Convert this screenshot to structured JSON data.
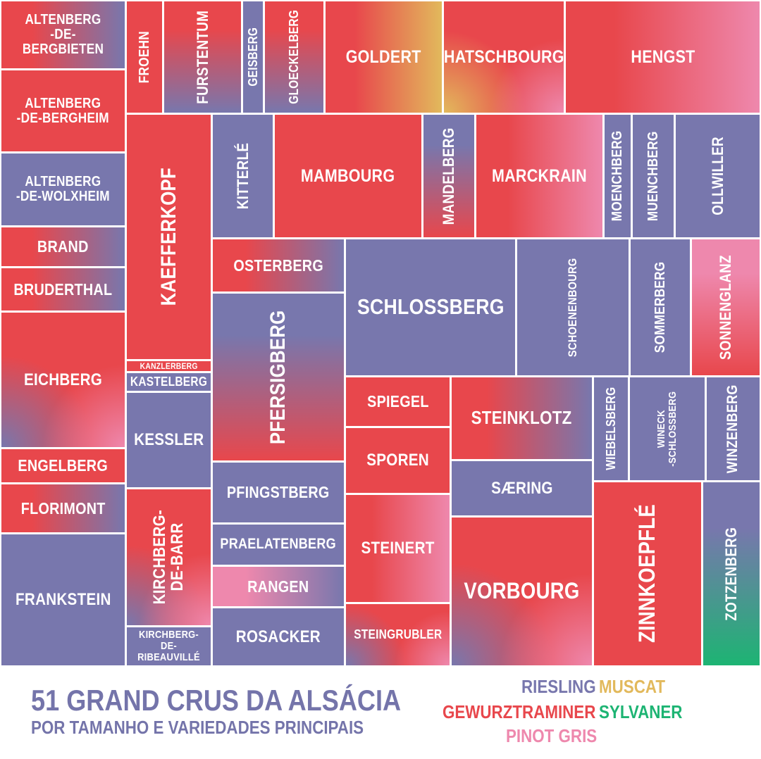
{
  "colors": {
    "Riesling": "#7877ad",
    "Muscat": "#e2b95c",
    "Gewurztraminer": "#e8474c",
    "Sylvaner": "#1db473",
    "Pinot Gris": "#ee88ad"
  },
  "title": {
    "line1": "51 GRAND CRUS DA ALSÁCIA",
    "line2": "POR TAMANHO E VARIEDADES PRINCIPAIS"
  },
  "legend": [
    "RIESLING",
    "MUSCAT",
    "GEWURZTRAMINER",
    "SYLVANER",
    "PINOT GRIS"
  ],
  "chart_data": {
    "type": "treemap",
    "title": "51 GRAND CRUS DA ALSÁCIA",
    "subtitle": "POR TAMANHO E VARIEDADES PRINCIPAIS",
    "legend": [
      "Riesling",
      "Muscat",
      "Gewurztraminer",
      "Sylvaner",
      "Pinot Gris"
    ],
    "cells": [
      {
        "name": "ALTENBERG\n-DE-BERGBIETEN",
        "varieties": [
          "Gewurztraminer",
          "Riesling"
        ]
      },
      {
        "name": "ALTENBERG\n-DE-BERGHEIM",
        "varieties": [
          "Gewurztraminer"
        ]
      },
      {
        "name": "ALTENBERG\n-DE-WOLXHEIM",
        "varieties": [
          "Riesling"
        ]
      },
      {
        "name": "BRAND",
        "varieties": [
          "Gewurztraminer",
          "Riesling"
        ]
      },
      {
        "name": "BRUDERTHAL",
        "varieties": [
          "Gewurztraminer",
          "Riesling"
        ]
      },
      {
        "name": "EICHBERG",
        "varieties": [
          "Gewurztraminer",
          "Riesling",
          "Pinot Gris"
        ]
      },
      {
        "name": "ENGELBERG",
        "varieties": [
          "Gewurztraminer"
        ]
      },
      {
        "name": "FLORIMONT",
        "varieties": [
          "Gewurztraminer",
          "Riesling"
        ]
      },
      {
        "name": "FRANKSTEIN",
        "varieties": [
          "Riesling"
        ]
      },
      {
        "name": "FROEHN",
        "varieties": [
          "Gewurztraminer"
        ]
      },
      {
        "name": "FURSTENTUM",
        "varieties": [
          "Gewurztraminer",
          "Riesling"
        ]
      },
      {
        "name": "GEISBERG",
        "varieties": [
          "Riesling"
        ]
      },
      {
        "name": "GLOECKELBERG",
        "varieties": [
          "Gewurztraminer",
          "Riesling"
        ]
      },
      {
        "name": "GOLDERT",
        "varieties": [
          "Gewurztraminer",
          "Muscat"
        ]
      },
      {
        "name": "HATSCHBOURG",
        "varieties": [
          "Gewurztraminer",
          "Muscat",
          "Pinot Gris"
        ]
      },
      {
        "name": "HENGST",
        "varieties": [
          "Gewurztraminer",
          "Pinot Gris"
        ]
      },
      {
        "name": "KAEFFERKOPF",
        "varieties": [
          "Gewurztraminer"
        ]
      },
      {
        "name": "KANZLERBERG",
        "varieties": [
          "Gewurztraminer"
        ]
      },
      {
        "name": "KASTELBERG",
        "varieties": [
          "Riesling"
        ]
      },
      {
        "name": "KESSLER",
        "varieties": [
          "Riesling"
        ]
      },
      {
        "name": "KIRCHBERG-\nDE-BARR",
        "varieties": [
          "Gewurztraminer",
          "Riesling",
          "Pinot Gris"
        ]
      },
      {
        "name": "KIRCHBERG-\nDE-RIBEAUVILLÉ",
        "varieties": [
          "Riesling"
        ]
      },
      {
        "name": "KITTERLÉ",
        "varieties": [
          "Riesling"
        ]
      },
      {
        "name": "MAMBOURG",
        "varieties": [
          "Gewurztraminer"
        ]
      },
      {
        "name": "MANDELBERG",
        "varieties": [
          "Riesling",
          "Gewurztraminer"
        ]
      },
      {
        "name": "MARCKRAIN",
        "varieties": [
          "Gewurztraminer",
          "Pinot Gris"
        ]
      },
      {
        "name": "MOENCHBERG",
        "varieties": [
          "Riesling"
        ]
      },
      {
        "name": "MUENCHBERG",
        "varieties": [
          "Riesling"
        ]
      },
      {
        "name": "OLLWILLER",
        "varieties": [
          "Riesling"
        ]
      },
      {
        "name": "OSTERBERG",
        "varieties": [
          "Gewurztraminer",
          "Riesling"
        ]
      },
      {
        "name": "PFERSIGBERG",
        "varieties": [
          "Riesling",
          "Gewurztraminer"
        ]
      },
      {
        "name": "PFINGSTBERG",
        "varieties": [
          "Riesling"
        ]
      },
      {
        "name": "PRAELATENBERG",
        "varieties": [
          "Riesling"
        ]
      },
      {
        "name": "RANGEN",
        "varieties": [
          "Pinot Gris",
          "Riesling"
        ]
      },
      {
        "name": "ROSACKER",
        "varieties": [
          "Riesling"
        ]
      },
      {
        "name": "SCHLOSSBERG",
        "varieties": [
          "Riesling"
        ]
      },
      {
        "name": "SCHOENENBOURG",
        "varieties": [
          "Riesling"
        ]
      },
      {
        "name": "SOMMERBERG",
        "varieties": [
          "Riesling"
        ]
      },
      {
        "name": "SONNENGLANZ",
        "varieties": [
          "Pinot Gris",
          "Gewurztraminer"
        ]
      },
      {
        "name": "SPIEGEL",
        "varieties": [
          "Gewurztraminer"
        ]
      },
      {
        "name": "SPOREN",
        "varieties": [
          "Gewurztraminer"
        ]
      },
      {
        "name": "STEINERT",
        "varieties": [
          "Gewurztraminer",
          "Pinot Gris"
        ]
      },
      {
        "name": "STEINGRUBLER",
        "varieties": [
          "Gewurztraminer",
          "Riesling",
          "Pinot Gris"
        ]
      },
      {
        "name": "STEINKLOTZ",
        "varieties": [
          "Gewurztraminer",
          "Riesling"
        ]
      },
      {
        "name": "SÆRING",
        "varieties": [
          "Riesling"
        ]
      },
      {
        "name": "VORBOURG",
        "varieties": [
          "Gewurztraminer",
          "Riesling",
          "Pinot Gris"
        ]
      },
      {
        "name": "WIEBELSBERG",
        "varieties": [
          "Riesling"
        ]
      },
      {
        "name": "WINECK\n-SCHLOSSBERG",
        "varieties": [
          "Riesling"
        ]
      },
      {
        "name": "WINZENBERG",
        "varieties": [
          "Riesling"
        ]
      },
      {
        "name": "ZINNKOEPFLÉ",
        "varieties": [
          "Gewurztraminer"
        ]
      },
      {
        "name": "ZOTZENBERG",
        "varieties": [
          "Riesling",
          "Sylvaner"
        ]
      }
    ]
  }
}
